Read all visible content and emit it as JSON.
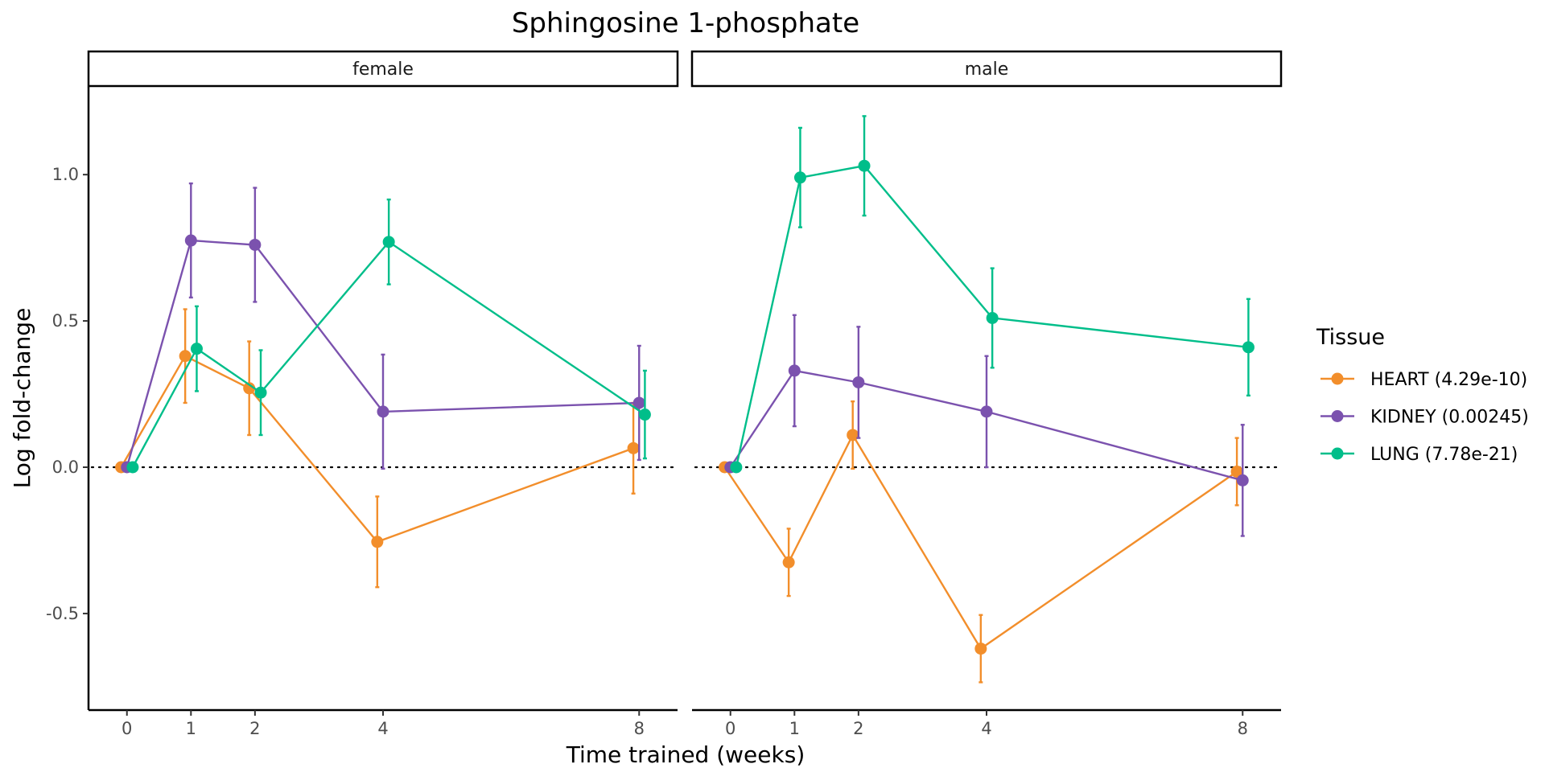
{
  "chart_data": {
    "type": "line",
    "title": "Sphingosine 1-phosphate",
    "xlabel": "Time trained (weeks)",
    "ylabel": "Log fold-change",
    "x_ticks": [
      0,
      1,
      2,
      4,
      8
    ],
    "y_ticks": [
      -0.5,
      0.0,
      0.5,
      1.0
    ],
    "y_tick_labels": [
      "-0.5",
      "0.0",
      "0.5",
      "1.0"
    ],
    "ylim": [
      -0.83,
      1.3
    ],
    "xlim": [
      -0.6,
      8.6
    ],
    "reference_line": 0,
    "grid": false,
    "legend": {
      "title": "Tissue",
      "position": "right"
    },
    "series": [
      {
        "name": "HEART (4.29e-10)",
        "color": "#f28e2b"
      },
      {
        "name": "KIDNEY (0.00245)",
        "color": "#7b52ae"
      },
      {
        "name": "LUNG (7.78e-21)",
        "color": "#00be8a"
      }
    ],
    "panels": [
      {
        "label": "female",
        "series": [
          {
            "x": [
              0,
              1,
              2,
              4,
              8
            ],
            "y": [
              0.0,
              0.38,
              0.27,
              -0.255,
              0.065
            ],
            "err": [
              0.0,
              0.16,
              0.16,
              0.155,
              0.155
            ]
          },
          {
            "x": [
              0,
              1,
              2,
              4,
              8
            ],
            "y": [
              0.0,
              0.775,
              0.76,
              0.19,
              0.22
            ],
            "err": [
              0.0,
              0.195,
              0.195,
              0.195,
              0.195
            ]
          },
          {
            "x": [
              0,
              1,
              2,
              4,
              8
            ],
            "y": [
              0.0,
              0.405,
              0.255,
              0.77,
              0.18
            ],
            "err": [
              0.0,
              0.145,
              0.145,
              0.145,
              0.15
            ]
          }
        ]
      },
      {
        "label": "male",
        "series": [
          {
            "x": [
              0,
              1,
              2,
              4,
              8
            ],
            "y": [
              0.0,
              -0.325,
              0.11,
              -0.62,
              -0.015
            ],
            "err": [
              0.0,
              0.115,
              0.115,
              0.115,
              0.115
            ]
          },
          {
            "x": [
              0,
              1,
              2,
              4,
              8
            ],
            "y": [
              0.0,
              0.33,
              0.29,
              0.19,
              -0.045
            ],
            "err": [
              0.0,
              0.19,
              0.19,
              0.19,
              0.19
            ]
          },
          {
            "x": [
              0,
              1,
              2,
              4,
              8
            ],
            "y": [
              0.0,
              0.99,
              1.03,
              0.51,
              0.41
            ],
            "err": [
              0.0,
              0.17,
              0.17,
              0.17,
              0.165
            ]
          }
        ]
      }
    ]
  }
}
